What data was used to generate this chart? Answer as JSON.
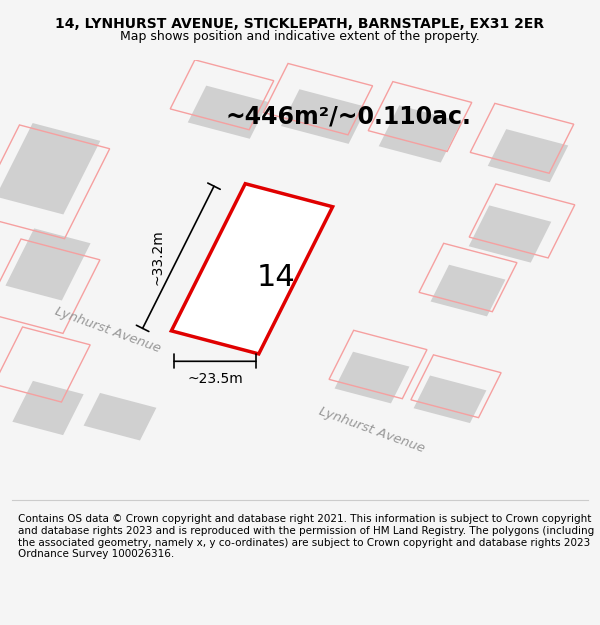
{
  "title": "14, LYNHURST AVENUE, STICKLEPATH, BARNSTAPLE, EX31 2ER",
  "subtitle": "Map shows position and indicative extent of the property.",
  "area_text": "~446m²/~0.110ac.",
  "number_label": "14",
  "dim_width": "~23.5m",
  "dim_height": "~33.2m",
  "footer": "Contains OS data © Crown copyright and database right 2021. This information is subject to Crown copyright and database rights 2023 and is reproduced with the permission of HM Land Registry. The polygons (including the associated geometry, namely x, y co-ordinates) are subject to Crown copyright and database rights 2023 Ordnance Survey 100026316.",
  "bg_color": "#f5f5f5",
  "map_bg": "#ffffff",
  "plot_color_red": "#e00000",
  "plot_color_pink": "#f08080",
  "gray_block": "#cccccc",
  "street_label_1": "Lynhurst Avenue",
  "street_label_2": "Lynhurst Avenue",
  "title_fontsize": 10,
  "subtitle_fontsize": 9,
  "area_fontsize": 17,
  "number_fontsize": 22,
  "footer_fontsize": 7.5
}
